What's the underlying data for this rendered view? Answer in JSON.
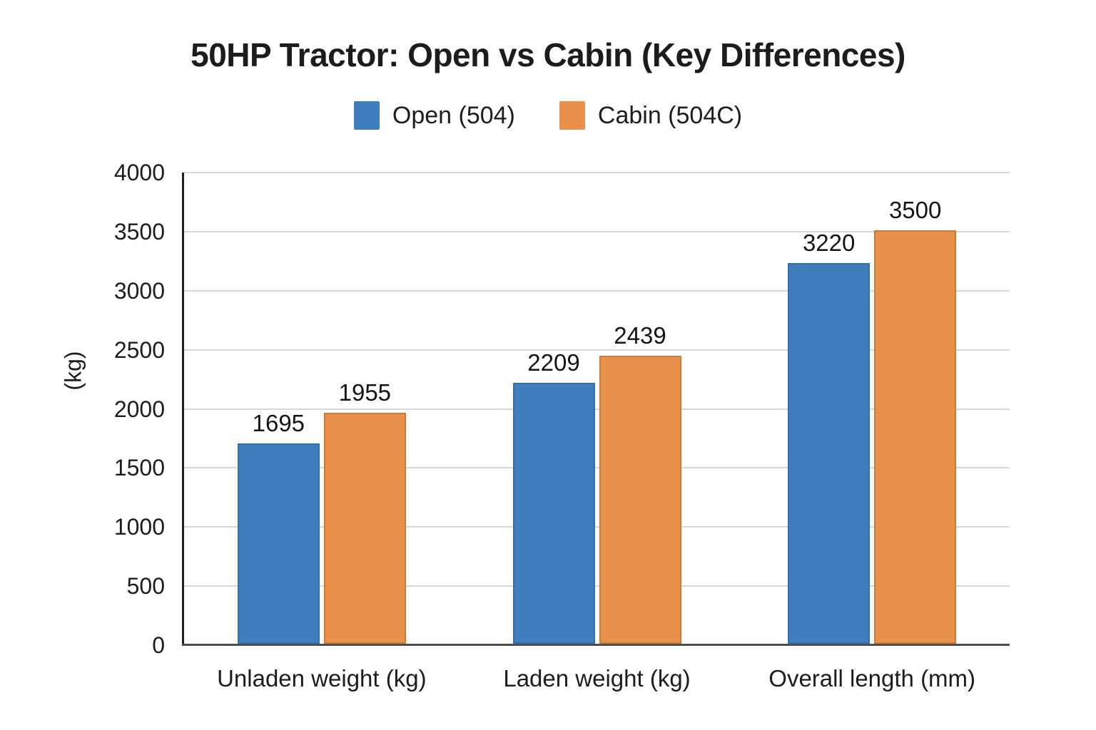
{
  "chart_data": {
    "type": "bar",
    "title": "50HP Tractor: Open vs Cabin (Key Differences)",
    "ylabel": "(kg)",
    "xlabel": "",
    "categories": [
      "Unladen weight (kg)",
      "Laden weight (kg)",
      "Overall length (mm)"
    ],
    "series": [
      {
        "name": "Open (504)",
        "color": "#3e7ebd",
        "edge_color": "#336fa9",
        "values": [
          1695,
          2209,
          3220
        ]
      },
      {
        "name": "Cabin (504C)",
        "color": "#e8914a",
        "edge_color": "#cf7a32",
        "values": [
          1955,
          2439,
          3500
        ]
      }
    ],
    "ylim": [
      0,
      4000
    ],
    "yticks": [
      0,
      500,
      1000,
      1500,
      2000,
      2500,
      3000,
      3500,
      4000
    ],
    "grid": true,
    "legend_position": "top-center",
    "value_labels": true
  },
  "colors": {
    "background": "#ffffff",
    "gridline": "#d8d8d8",
    "left_spine": "#1f1f1f",
    "bottom_axis": "#4d4d4d",
    "text": "#1d1d1d"
  }
}
